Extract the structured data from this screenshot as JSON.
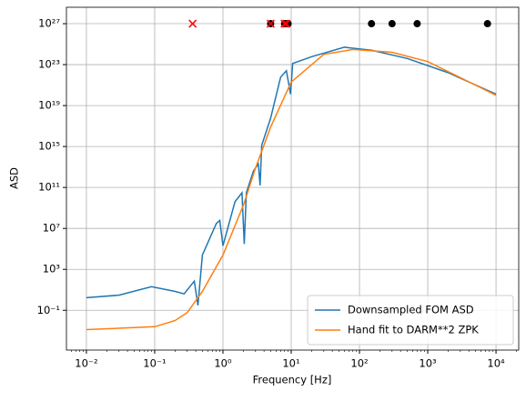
{
  "chart_data": {
    "type": "line",
    "x_label": "Frequency [Hz]",
    "y_label": "ASD",
    "xscale": "log",
    "yscale": "log",
    "grid": true,
    "legend": "lower right",
    "xlim": [
      0.0051,
      21500
    ],
    "ylim": [
      1.3e-05,
      4e+28
    ],
    "xticks": [
      {
        "value": 0.01,
        "label": "10⁻²"
      },
      {
        "value": 0.1,
        "label": "10⁻¹"
      },
      {
        "value": 1,
        "label": "10⁰"
      },
      {
        "value": 10,
        "label": "10¹"
      },
      {
        "value": 100,
        "label": "10²"
      },
      {
        "value": 1000,
        "label": "10³"
      },
      {
        "value": 10000,
        "label": "10⁴"
      }
    ],
    "yticks": [
      {
        "value": 0.1,
        "label": "10⁻¹"
      },
      {
        "value": 1000,
        "label": "10³"
      },
      {
        "value": 10000000.0,
        "label": "10⁷"
      },
      {
        "value": 100000000000.0,
        "label": "10¹¹"
      },
      {
        "value": 1000000000000000.0,
        "label": "10¹⁵"
      },
      {
        "value": 1e+19,
        "label": "10¹⁹"
      },
      {
        "value": 1e+23,
        "label": "10²³"
      },
      {
        "value": 1e+27,
        "label": "10²⁷"
      }
    ],
    "series": [
      {
        "name": "Downsampled FOM ASD",
        "color": "#1f77b4",
        "marker": "line",
        "x": [
          0.01,
          0.03,
          0.09,
          0.2,
          0.27,
          0.38,
          0.43,
          0.5,
          0.8,
          0.9,
          1.0,
          1.5,
          1.9,
          2.05,
          2.2,
          2.8,
          3.3,
          3.5,
          3.7,
          5,
          7,
          8.5,
          9.8,
          10.5,
          20,
          60,
          150,
          500,
          2000,
          10000
        ],
        "y": [
          1.7,
          3,
          20,
          7,
          4,
          70,
          0.3,
          25000,
          30000000.0,
          60000000.0,
          200000,
          4000000000.0,
          30000000000.0,
          300000,
          30000000000.0,
          4000000000000.0,
          20000000000000.0,
          160000000000.0,
          1300000000000000.0,
          6e+17,
          6e+21,
          2.5e+22,
          1.3e+20,
          1.3e+23,
          6e+23,
          5e+24,
          2.5e+24,
          4e+23,
          1.6e+22,
          1.3e+20
        ]
      },
      {
        "name": "Hand fit to DARM**2 ZPK",
        "color": "#ff7f0e",
        "marker": "line",
        "x": [
          0.01,
          0.1,
          0.2,
          0.3,
          0.5,
          1,
          2,
          3,
          5,
          10,
          30,
          80,
          300,
          1000,
          10000
        ],
        "y": [
          0.0013,
          0.0025,
          0.01,
          0.06,
          7,
          25000,
          2000000000.0,
          8000000000000.0,
          8e+16,
          2e+21,
          1e+24,
          3e+24,
          1.6e+24,
          2e+23,
          1e+20
        ]
      },
      {
        "color": "#000000",
        "marker": "o",
        "x": [
          5,
          8,
          8.5,
          9,
          150,
          300,
          700,
          7500
        ],
        "y": [
          1e+27,
          1e+27,
          1e+27,
          1e+27,
          1e+27,
          1e+27,
          1e+27,
          1e+27
        ]
      },
      {
        "color": "#ff0000",
        "marker": "x",
        "x": [
          0.36,
          5,
          8,
          8.5
        ],
        "y": [
          1e+27,
          1e+27,
          1e+27,
          1e+27
        ]
      }
    ]
  }
}
